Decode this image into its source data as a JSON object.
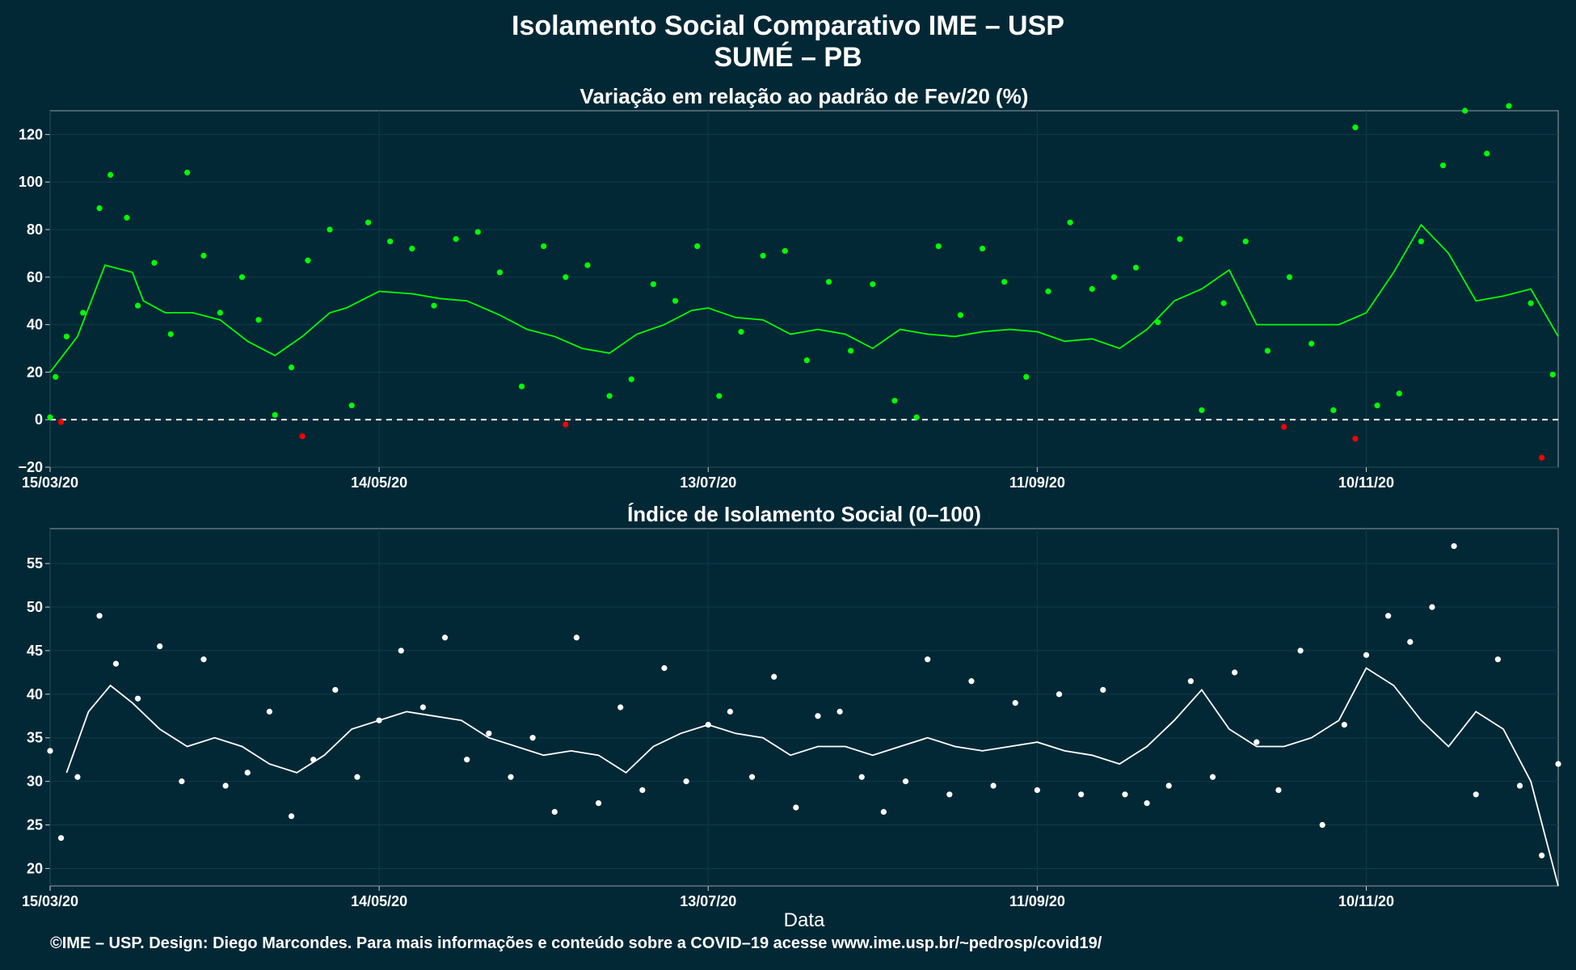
{
  "header": {
    "title": "Isolamento Social Comparativo IME – USP",
    "subtitle": "SUMÉ – PB"
  },
  "footer": {
    "credit": "©IME – USP. Design: Diego Marcondes. Para mais informações e conteúdo sobre a COVID–19 acesse www.ime.usp.br/~pedrosp/covid19/"
  },
  "colors": {
    "background": "#022836",
    "positive_points": "#00ff00",
    "negative_points": "#ff0000",
    "index_points": "#ffffff",
    "panel_border": "#7a8a90"
  },
  "chart_data": [
    {
      "type": "scatter",
      "title": "Variação em relação ao padrão de Fev/20 (%)",
      "xlabel": "",
      "ylabel": "",
      "xlim": [
        "2020-03-15",
        "2020-12-15"
      ],
      "ylim": [
        -20,
        130
      ],
      "x_tick_labels": [
        "15/03/20",
        "14/05/20",
        "13/07/20",
        "11/09/20",
        "10/11/20"
      ],
      "y_tick_labels": [
        "−20",
        "0",
        "20",
        "40",
        "60",
        "80",
        "100",
        "120"
      ],
      "y_ticks": [
        -20,
        0,
        20,
        40,
        60,
        80,
        100,
        120
      ],
      "reference_line": 0,
      "grid": true,
      "legend": "none",
      "series": [
        {
          "x": [
            "2020-03-15",
            "2020-03-20",
            "2020-03-25",
            "2020-03-30",
            "2020-04-01",
            "2020-04-05",
            "2020-04-10",
            "2020-04-15",
            "2020-04-20",
            "2020-04-25",
            "2020-04-30",
            "2020-05-05",
            "2020-05-08",
            "2020-05-14",
            "2020-05-20",
            "2020-05-25",
            "2020-05-30",
            "2020-06-05",
            "2020-06-10",
            "2020-06-15",
            "2020-06-20",
            "2020-06-25",
            "2020-06-30",
            "2020-07-05",
            "2020-07-10",
            "2020-07-13",
            "2020-07-18",
            "2020-07-23",
            "2020-07-28",
            "2020-08-02",
            "2020-08-07",
            "2020-08-12",
            "2020-08-17",
            "2020-08-22",
            "2020-08-27",
            "2020-09-01",
            "2020-09-06",
            "2020-09-11",
            "2020-09-16",
            "2020-09-21",
            "2020-09-26",
            "2020-10-01",
            "2020-10-06",
            "2020-10-11",
            "2020-10-16",
            "2020-10-21",
            "2020-10-26",
            "2020-10-31",
            "2020-11-05",
            "2020-11-10",
            "2020-11-15",
            "2020-11-20",
            "2020-11-25",
            "2020-11-30",
            "2020-12-05",
            "2020-12-10",
            "2020-12-15"
          ],
          "values": [
            20,
            35,
            65,
            62,
            50,
            45,
            45,
            42,
            33,
            27,
            35,
            45,
            47,
            54,
            53,
            51,
            50,
            44,
            38,
            35,
            30,
            28,
            36,
            40,
            46,
            47,
            43,
            42,
            36,
            38,
            36,
            30,
            38,
            36,
            35,
            37,
            38,
            37,
            33,
            34,
            30,
            38,
            50,
            55,
            63,
            40,
            40,
            40,
            40,
            45,
            62,
            82,
            70,
            50,
            52,
            55,
            35
          ]
        },
        {
          "x": [
            "2020-03-15",
            "2020-03-16",
            "2020-03-18",
            "2020-03-21",
            "2020-03-24",
            "2020-03-26",
            "2020-03-29",
            "2020-03-31",
            "2020-04-03",
            "2020-04-06",
            "2020-04-09",
            "2020-04-12",
            "2020-04-15",
            "2020-04-19",
            "2020-04-22",
            "2020-04-25",
            "2020-04-28",
            "2020-05-01",
            "2020-05-05",
            "2020-05-09",
            "2020-05-12",
            "2020-05-16",
            "2020-05-20",
            "2020-05-24",
            "2020-05-28",
            "2020-06-01",
            "2020-06-05",
            "2020-06-09",
            "2020-06-13",
            "2020-06-17",
            "2020-06-21",
            "2020-06-25",
            "2020-06-29",
            "2020-07-03",
            "2020-07-07",
            "2020-07-11",
            "2020-07-15",
            "2020-07-19",
            "2020-07-23",
            "2020-07-27",
            "2020-07-31",
            "2020-08-04",
            "2020-08-08",
            "2020-08-12",
            "2020-08-16",
            "2020-08-20",
            "2020-08-24",
            "2020-08-28",
            "2020-09-01",
            "2020-09-05",
            "2020-09-09",
            "2020-09-13",
            "2020-09-17",
            "2020-09-21",
            "2020-09-25",
            "2020-09-29",
            "2020-10-03",
            "2020-10-07",
            "2020-10-11",
            "2020-10-15",
            "2020-10-19",
            "2020-10-23",
            "2020-10-27",
            "2020-10-31",
            "2020-11-04",
            "2020-11-08",
            "2020-11-12",
            "2020-11-16",
            "2020-11-20",
            "2020-11-24",
            "2020-11-28",
            "2020-12-02",
            "2020-12-06",
            "2020-12-10",
            "2020-12-14"
          ],
          "values": [
            1,
            18,
            35,
            45,
            89,
            103,
            85,
            48,
            66,
            36,
            104,
            69,
            45,
            60,
            42,
            2,
            22,
            67,
            80,
            6,
            83,
            75,
            72,
            48,
            76,
            79,
            62,
            14,
            73,
            60,
            65,
            10,
            17,
            57,
            50,
            73,
            10,
            37,
            69,
            71,
            25,
            58,
            29,
            57,
            8,
            1,
            73,
            44,
            72,
            58,
            18,
            54,
            83,
            55,
            60,
            64,
            41,
            76,
            4,
            49,
            75,
            29,
            60,
            32,
            4,
            123,
            6,
            11,
            75,
            107,
            130,
            112,
            132,
            49,
            19
          ]
        },
        {
          "x": [
            "2020-03-17",
            "2020-04-30",
            "2020-06-17",
            "2020-10-26",
            "2020-11-08",
            "2020-12-12"
          ],
          "values": [
            -1,
            -7,
            -2,
            -3,
            -8,
            -16
          ]
        }
      ]
    },
    {
      "type": "scatter",
      "title": "Índice de Isolamento Social (0–100)",
      "xlabel": "Data",
      "ylabel": "",
      "xlim": [
        "2020-03-15",
        "2020-12-15"
      ],
      "ylim": [
        18,
        59
      ],
      "x_tick_labels": [
        "15/03/20",
        "14/05/20",
        "13/07/20",
        "11/09/20",
        "10/11/20"
      ],
      "y_tick_labels": [
        "20",
        "25",
        "30",
        "35",
        "40",
        "45",
        "50",
        "55"
      ],
      "y_ticks": [
        20,
        25,
        30,
        35,
        40,
        45,
        50,
        55
      ],
      "grid": true,
      "legend": "none",
      "series": [
        {
          "x": [
            "2020-03-18",
            "2020-03-22",
            "2020-03-26",
            "2020-03-30",
            "2020-04-04",
            "2020-04-09",
            "2020-04-14",
            "2020-04-19",
            "2020-04-24",
            "2020-04-29",
            "2020-05-04",
            "2020-05-09",
            "2020-05-14",
            "2020-05-19",
            "2020-05-24",
            "2020-05-29",
            "2020-06-03",
            "2020-06-08",
            "2020-06-13",
            "2020-06-18",
            "2020-06-23",
            "2020-06-28",
            "2020-07-03",
            "2020-07-08",
            "2020-07-13",
            "2020-07-18",
            "2020-07-23",
            "2020-07-28",
            "2020-08-02",
            "2020-08-07",
            "2020-08-12",
            "2020-08-17",
            "2020-08-22",
            "2020-08-27",
            "2020-09-01",
            "2020-09-06",
            "2020-09-11",
            "2020-09-16",
            "2020-09-21",
            "2020-09-26",
            "2020-10-01",
            "2020-10-06",
            "2020-10-11",
            "2020-10-16",
            "2020-10-21",
            "2020-10-26",
            "2020-10-31",
            "2020-11-05",
            "2020-11-10",
            "2020-11-15",
            "2020-11-20",
            "2020-11-25",
            "2020-11-30",
            "2020-12-05",
            "2020-12-10",
            "2020-12-15"
          ],
          "values": [
            31,
            38,
            41,
            39,
            36,
            34,
            35,
            34,
            32,
            31,
            33,
            36,
            37,
            38,
            37.5,
            37,
            35,
            34,
            33,
            33.5,
            33,
            31,
            34,
            35.5,
            36.5,
            35.5,
            35,
            33,
            34,
            34,
            33,
            34,
            35,
            34,
            33.5,
            34,
            34.5,
            33.5,
            33,
            32,
            34,
            37,
            40.5,
            36,
            34,
            34,
            35,
            37,
            43,
            41,
            37,
            34,
            38,
            36,
            30,
            18
          ]
        },
        {
          "x": [
            "2020-03-15",
            "2020-03-17",
            "2020-03-20",
            "2020-03-24",
            "2020-03-27",
            "2020-03-31",
            "2020-04-04",
            "2020-04-08",
            "2020-04-12",
            "2020-04-16",
            "2020-04-20",
            "2020-04-24",
            "2020-04-28",
            "2020-05-02",
            "2020-05-06",
            "2020-05-10",
            "2020-05-14",
            "2020-05-18",
            "2020-05-22",
            "2020-05-26",
            "2020-05-30",
            "2020-06-03",
            "2020-06-07",
            "2020-06-11",
            "2020-06-15",
            "2020-06-19",
            "2020-06-23",
            "2020-06-27",
            "2020-07-01",
            "2020-07-05",
            "2020-07-09",
            "2020-07-13",
            "2020-07-17",
            "2020-07-21",
            "2020-07-25",
            "2020-07-29",
            "2020-08-02",
            "2020-08-06",
            "2020-08-10",
            "2020-08-14",
            "2020-08-18",
            "2020-08-22",
            "2020-08-26",
            "2020-08-30",
            "2020-09-03",
            "2020-09-07",
            "2020-09-11",
            "2020-09-15",
            "2020-09-19",
            "2020-09-23",
            "2020-09-27",
            "2020-10-01",
            "2020-10-05",
            "2020-10-09",
            "2020-10-13",
            "2020-10-17",
            "2020-10-21",
            "2020-10-25",
            "2020-10-29",
            "2020-11-02",
            "2020-11-06",
            "2020-11-10",
            "2020-11-14",
            "2020-11-18",
            "2020-11-22",
            "2020-11-26",
            "2020-11-30",
            "2020-12-04",
            "2020-12-08",
            "2020-12-12",
            "2020-12-15"
          ],
          "values": [
            33.5,
            23.5,
            30.5,
            49,
            43.5,
            39.5,
            45.5,
            30,
            44,
            29.5,
            31,
            38,
            26,
            32.5,
            40.5,
            30.5,
            37,
            45,
            38.5,
            46.5,
            32.5,
            35.5,
            30.5,
            35,
            26.5,
            46.5,
            27.5,
            38.5,
            29,
            43,
            30,
            36.5,
            38,
            30.5,
            42,
            27,
            37.5,
            38,
            30.5,
            26.5,
            30,
            44,
            28.5,
            41.5,
            29.5,
            39,
            29,
            40,
            28.5,
            40.5,
            28.5,
            27.5,
            29.5,
            41.5,
            30.5,
            42.5,
            34.5,
            29,
            45,
            25,
            36.5,
            44.5,
            49,
            46,
            50,
            57,
            28.5,
            44,
            29.5,
            21.5,
            32
          ]
        }
      ]
    }
  ]
}
